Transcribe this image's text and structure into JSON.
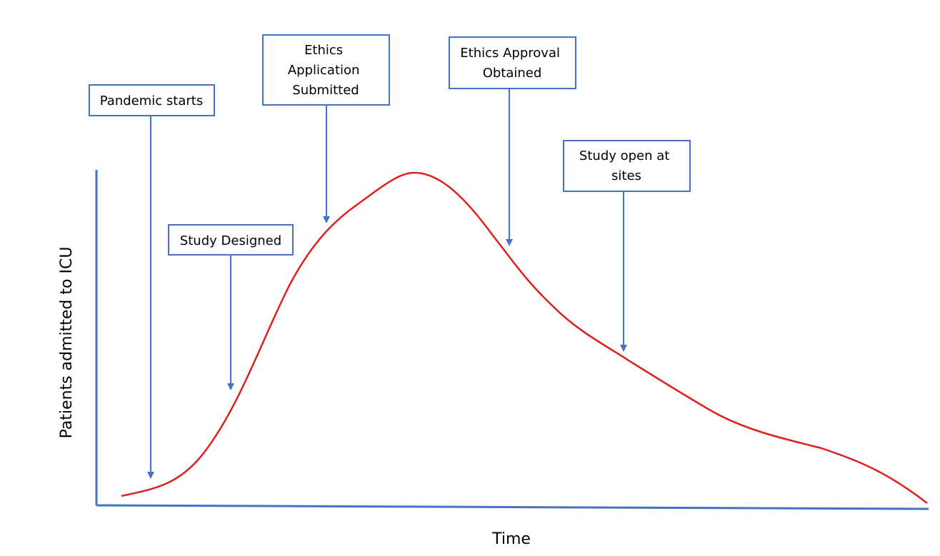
{
  "colors": {
    "axis": "#4472c4",
    "box_border": "#4472c4",
    "arrow": "#4472c4",
    "curve": "#e01e1e",
    "text": "#000000"
  },
  "axes": {
    "x_label": "Time",
    "y_label": "Patients admitted to ICU"
  },
  "milestones": [
    {
      "id": "pandemic-starts",
      "lines": [
        "Pandemic starts"
      ]
    },
    {
      "id": "study-designed",
      "lines": [
        "Study Designed"
      ]
    },
    {
      "id": "ethics-application-submitted",
      "lines": [
        "Ethics",
        "Application",
        "Submitted"
      ]
    },
    {
      "id": "ethics-approval-obtained",
      "lines": [
        "Ethics Approval",
        "Obtained"
      ]
    },
    {
      "id": "study-open-at-sites",
      "lines": [
        "Study open at",
        "sites"
      ]
    }
  ]
}
